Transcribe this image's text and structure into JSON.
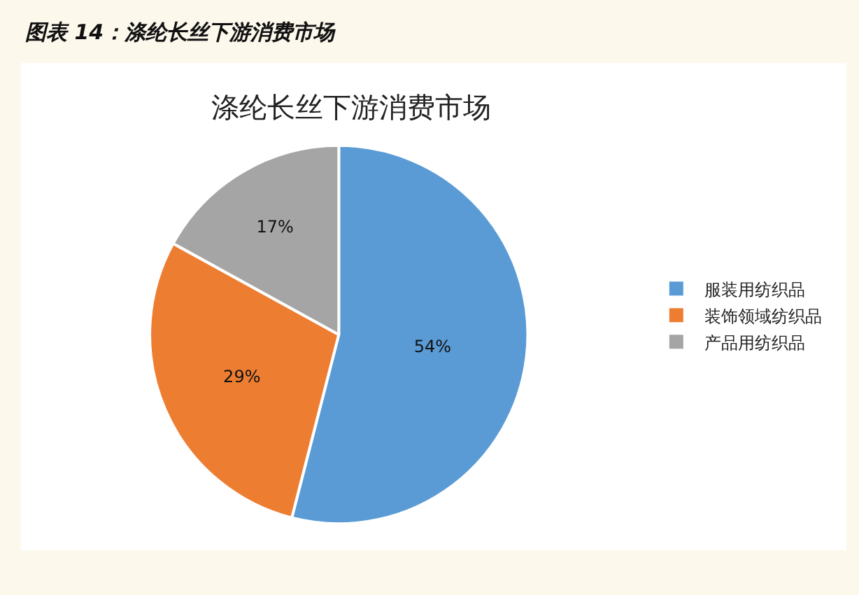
{
  "chart_data": {
    "type": "pie",
    "title": "涤纶长丝下游消费市场",
    "annotations": [
      "图表 14：涤纶长丝下游消费市场"
    ],
    "categories": [
      "服装用纺织品",
      "装饰领域纺织品",
      "产品用纺织品"
    ],
    "values": [
      54,
      29,
      17
    ],
    "value_labels": [
      "54%",
      "29%",
      "17%"
    ],
    "colors": [
      "#5b9bd5",
      "#ed7d31",
      "#a5a5a5"
    ],
    "legend": "right"
  }
}
